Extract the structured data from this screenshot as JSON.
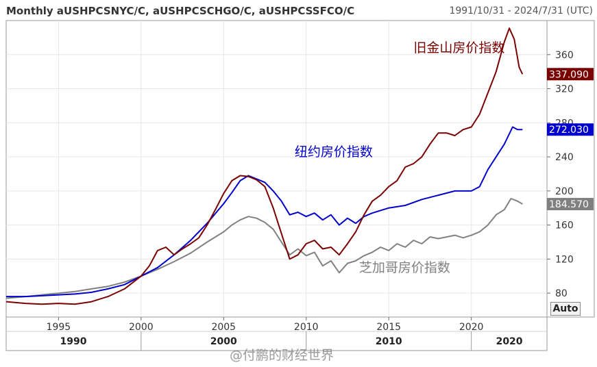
{
  "header": {
    "title": "Monthly aUSHPCSNYC/C, aUSHPCSCHGO/C, aUSHPCSSFCO/C",
    "date_range": "1991/10/31 - 2024/7/31 (UTC)"
  },
  "auto_button": "Auto",
  "watermark": "@付鹏的财经世界",
  "colors": {
    "sf": "#7a0000",
    "ny": "#0000cc",
    "chicago": "#808080",
    "tag_bg_ny": "#0000cc",
    "tag_bg_sf": "#7a0000",
    "tag_bg_chi": "#808080"
  },
  "chart_data": {
    "type": "line",
    "title": "Monthly aUSHPCSNYC/C, aUSHPCSCHGO/C, aUSHPCSSFCO/C",
    "xlim": [
      1991.83,
      2024.58
    ],
    "ylim": [
      52,
      400
    ],
    "yticks": [
      80,
      120,
      160,
      200,
      240,
      280,
      320,
      360
    ],
    "xticks": [
      1995,
      2000,
      2005,
      2010,
      2015,
      2020
    ],
    "decade_labels": [
      {
        "label": "1990",
        "year": 1991.83
      },
      {
        "label": "2000",
        "year": 2005
      },
      {
        "label": "2010",
        "year": 2015
      },
      {
        "label": "2020",
        "year": 2022.3
      }
    ],
    "grid": true,
    "annotations": [
      {
        "text": "旧金山房价指数",
        "x": 2016.5,
        "y": 363,
        "series": "sf"
      },
      {
        "text": "纽约房价指数",
        "x": 2009.3,
        "y": 241,
        "series": "ny"
      },
      {
        "text": "芝加哥房价指数",
        "x": 2013.2,
        "y": 105,
        "series": "chicago"
      }
    ],
    "series": [
      {
        "key": "sf",
        "last_value": "337.090",
        "points": [
          [
            1991.83,
            70
          ],
          [
            1993,
            68
          ],
          [
            1994,
            67
          ],
          [
            1995,
            68
          ],
          [
            1996,
            67
          ],
          [
            1997,
            70
          ],
          [
            1998,
            76
          ],
          [
            1999,
            85
          ],
          [
            2000,
            100
          ],
          [
            2000.5,
            112
          ],
          [
            2001,
            130
          ],
          [
            2001.5,
            134
          ],
          [
            2002,
            125
          ],
          [
            2002.5,
            132
          ],
          [
            2003,
            138
          ],
          [
            2003.5,
            145
          ],
          [
            2004,
            160
          ],
          [
            2004.5,
            178
          ],
          [
            2005,
            197
          ],
          [
            2005.5,
            212
          ],
          [
            2006,
            218
          ],
          [
            2006.5,
            217
          ],
          [
            2007,
            213
          ],
          [
            2007.5,
            205
          ],
          [
            2008,
            180
          ],
          [
            2008.5,
            150
          ],
          [
            2009,
            120
          ],
          [
            2009.5,
            125
          ],
          [
            2010,
            138
          ],
          [
            2010.5,
            142
          ],
          [
            2011,
            132
          ],
          [
            2011.5,
            134
          ],
          [
            2012,
            125
          ],
          [
            2012.5,
            138
          ],
          [
            2013,
            152
          ],
          [
            2013.5,
            172
          ],
          [
            2014,
            188
          ],
          [
            2014.5,
            195
          ],
          [
            2015,
            205
          ],
          [
            2015.5,
            212
          ],
          [
            2016,
            228
          ],
          [
            2016.5,
            232
          ],
          [
            2017,
            240
          ],
          [
            2017.5,
            255
          ],
          [
            2018,
            268
          ],
          [
            2018.5,
            268
          ],
          [
            2019,
            265
          ],
          [
            2019.5,
            272
          ],
          [
            2020,
            275
          ],
          [
            2020.5,
            290
          ],
          [
            2021,
            315
          ],
          [
            2021.5,
            340
          ],
          [
            2022,
            375
          ],
          [
            2022.3,
            391
          ],
          [
            2022.6,
            378
          ],
          [
            2022.9,
            345
          ],
          [
            2023.1,
            337.09
          ]
        ]
      },
      {
        "key": "ny",
        "last_value": "272.030",
        "points": [
          [
            1991.83,
            76
          ],
          [
            1993,
            76
          ],
          [
            1994,
            77
          ],
          [
            1995,
            78
          ],
          [
            1996,
            79
          ],
          [
            1997,
            81
          ],
          [
            1998,
            85
          ],
          [
            1999,
            90
          ],
          [
            2000,
            100
          ],
          [
            2001,
            110
          ],
          [
            2002,
            125
          ],
          [
            2003,
            142
          ],
          [
            2004,
            162
          ],
          [
            2005,
            185
          ],
          [
            2005.5,
            198
          ],
          [
            2006,
            212
          ],
          [
            2006.5,
            218
          ],
          [
            2007,
            214
          ],
          [
            2007.5,
            210
          ],
          [
            2008,
            200
          ],
          [
            2008.5,
            188
          ],
          [
            2009,
            172
          ],
          [
            2009.5,
            175
          ],
          [
            2010,
            170
          ],
          [
            2010.5,
            174
          ],
          [
            2011,
            166
          ],
          [
            2011.5,
            172
          ],
          [
            2012,
            160
          ],
          [
            2012.5,
            168
          ],
          [
            2013,
            162
          ],
          [
            2013.5,
            170
          ],
          [
            2014,
            174
          ],
          [
            2015,
            180
          ],
          [
            2016,
            183
          ],
          [
            2017,
            190
          ],
          [
            2018,
            195
          ],
          [
            2019,
            200
          ],
          [
            2020,
            200
          ],
          [
            2020.5,
            205
          ],
          [
            2021,
            225
          ],
          [
            2021.5,
            240
          ],
          [
            2022,
            255
          ],
          [
            2022.5,
            275
          ],
          [
            2022.8,
            272
          ],
          [
            2023.1,
            272.03
          ]
        ]
      },
      {
        "key": "chicago",
        "last_value": "184.570",
        "points": [
          [
            1991.83,
            74
          ],
          [
            1993,
            76
          ],
          [
            1994,
            78
          ],
          [
            1995,
            80
          ],
          [
            1996,
            82
          ],
          [
            1997,
            85
          ],
          [
            1998,
            88
          ],
          [
            1999,
            93
          ],
          [
            2000,
            100
          ],
          [
            2001,
            108
          ],
          [
            2002,
            117
          ],
          [
            2003,
            127
          ],
          [
            2004,
            140
          ],
          [
            2005,
            152
          ],
          [
            2005.5,
            160
          ],
          [
            2006,
            166
          ],
          [
            2006.5,
            170
          ],
          [
            2007,
            168
          ],
          [
            2007.5,
            163
          ],
          [
            2008,
            155
          ],
          [
            2008.5,
            140
          ],
          [
            2009,
            125
          ],
          [
            2009.5,
            132
          ],
          [
            2010,
            124
          ],
          [
            2010.5,
            128
          ],
          [
            2011,
            112
          ],
          [
            2011.5,
            118
          ],
          [
            2012,
            104
          ],
          [
            2012.5,
            115
          ],
          [
            2013,
            118
          ],
          [
            2013.5,
            124
          ],
          [
            2014,
            128
          ],
          [
            2014.5,
            134
          ],
          [
            2015,
            130
          ],
          [
            2015.5,
            138
          ],
          [
            2016,
            134
          ],
          [
            2016.5,
            142
          ],
          [
            2017,
            138
          ],
          [
            2017.5,
            146
          ],
          [
            2018,
            144
          ],
          [
            2019,
            148
          ],
          [
            2019.5,
            145
          ],
          [
            2020,
            148
          ],
          [
            2020.5,
            152
          ],
          [
            2021,
            160
          ],
          [
            2021.5,
            172
          ],
          [
            2022,
            178
          ],
          [
            2022.4,
            191
          ],
          [
            2022.8,
            188
          ],
          [
            2023.1,
            184.57
          ]
        ]
      }
    ]
  }
}
